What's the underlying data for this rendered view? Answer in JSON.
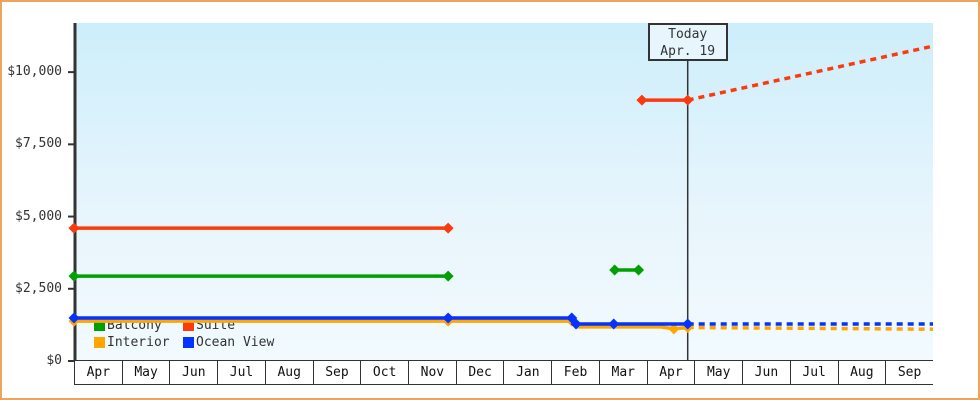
{
  "chart_data": {
    "type": "line",
    "title": "",
    "xlabel": "",
    "ylabel": "",
    "months": [
      "Apr",
      "May",
      "Jun",
      "Jul",
      "Aug",
      "Sep",
      "Oct",
      "Nov",
      "Dec",
      "Jan",
      "Feb",
      "Mar",
      "Apr",
      "May",
      "Jun",
      "Jul",
      "Aug",
      "Sep"
    ],
    "yticks": [
      {
        "label": "$0",
        "value": 0
      },
      {
        "label": "$2,500",
        "value": 2500
      },
      {
        "label": "$5,000",
        "value": 5000
      },
      {
        "label": "$7,500",
        "value": 7500
      },
      {
        "label": "$10,000",
        "value": 10000
      }
    ],
    "ylim": [
      0,
      11700
    ],
    "xlim_months": [
      0,
      18
    ],
    "grid": false,
    "legend_position": "bottom-left-inside",
    "today": {
      "m": 12.86,
      "line1": "Today",
      "line2": "Apr. 19"
    },
    "series": [
      {
        "name": "Balcony",
        "color": "#00a000",
        "segments": [
          {
            "style": "solid",
            "points": [
              {
                "m": 0,
                "v": 2940,
                "marker": true
              },
              {
                "m": 7.84,
                "v": 2940,
                "marker": true
              }
            ]
          },
          {
            "style": "solid",
            "points": [
              {
                "m": 11.33,
                "v": 3150,
                "marker": true
              },
              {
                "m": 11.83,
                "v": 3150,
                "marker": true
              }
            ]
          }
        ]
      },
      {
        "name": "Suite",
        "color": "#fb3a0e",
        "segments": [
          {
            "style": "solid",
            "points": [
              {
                "m": 0,
                "v": 4600,
                "marker": true
              },
              {
                "m": 7.84,
                "v": 4600,
                "marker": true
              }
            ]
          },
          {
            "style": "solid",
            "points": [
              {
                "m": 11.9,
                "v": 9030,
                "marker": true
              },
              {
                "m": 12.86,
                "v": 9030,
                "marker": true
              }
            ]
          },
          {
            "style": "dashed",
            "points": [
              {
                "m": 12.86,
                "v": 9030
              },
              {
                "m": 18,
                "v": 10900
              }
            ]
          }
        ]
      },
      {
        "name": "Interior",
        "color": "#ffa500",
        "segments": [
          {
            "style": "solid",
            "points": [
              {
                "m": 0,
                "v": 1380,
                "marker": true
              },
              {
                "m": 7.84,
                "v": 1380,
                "marker": true
              },
              {
                "m": 10.43,
                "v": 1380,
                "marker": true
              },
              {
                "m": 10.52,
                "v": 1180,
                "marker": false
              },
              {
                "m": 12.3,
                "v": 1180,
                "marker": false
              },
              {
                "m": 12.57,
                "v": 1110,
                "marker": true
              },
              {
                "m": 12.86,
                "v": 1160,
                "marker": true
              }
            ]
          },
          {
            "style": "dashed",
            "points": [
              {
                "m": 12.86,
                "v": 1160
              },
              {
                "m": 18,
                "v": 1100
              }
            ]
          }
        ]
      },
      {
        "name": "Ocean View",
        "color": "#0433ff",
        "segments": [
          {
            "style": "solid",
            "points": [
              {
                "m": 0,
                "v": 1490,
                "marker": true
              },
              {
                "m": 7.84,
                "v": 1490,
                "marker": true
              },
              {
                "m": 10.43,
                "v": 1490,
                "marker": true
              },
              {
                "m": 10.52,
                "v": 1280,
                "marker": true
              },
              {
                "m": 11.31,
                "v": 1280,
                "marker": true
              },
              {
                "m": 12.86,
                "v": 1280,
                "marker": true
              }
            ]
          },
          {
            "style": "dashed",
            "points": [
              {
                "m": 12.86,
                "v": 1280
              },
              {
                "m": 18,
                "v": 1280
              }
            ]
          }
        ]
      }
    ],
    "legend": [
      {
        "label": "Balcony",
        "color": "#00a000"
      },
      {
        "label": "Suite",
        "color": "#fb3a0e"
      },
      {
        "label": "Interior",
        "color": "#ffa500"
      },
      {
        "label": "Ocean View",
        "color": "#0433ff"
      }
    ],
    "colors": {
      "axis": "#333333",
      "page_border": "#eca45f",
      "plot_bg_top": "#cdeefb",
      "plot_bg_bottom": "#f2fafe",
      "month_box_bg": "#ffffff"
    }
  }
}
